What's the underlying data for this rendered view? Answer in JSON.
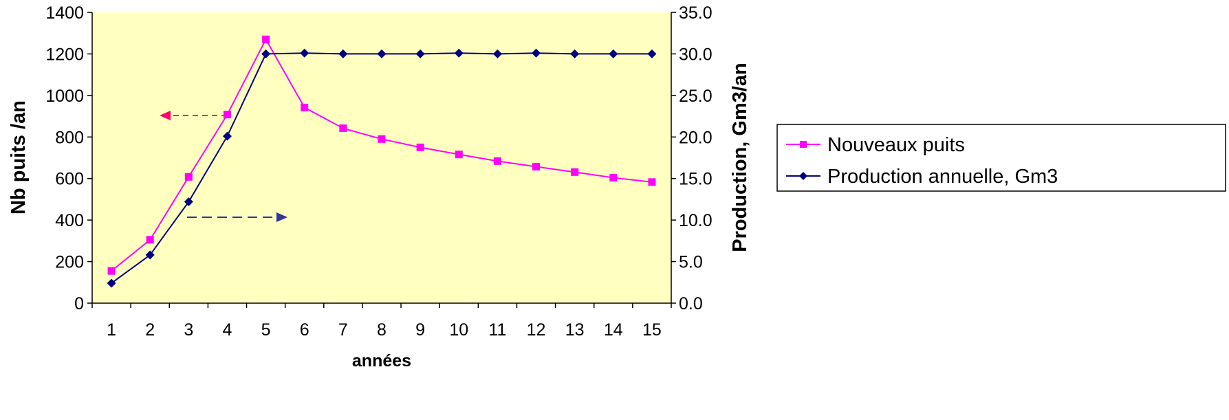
{
  "chart_data": {
    "type": "line",
    "x": [
      1,
      2,
      3,
      4,
      5,
      6,
      7,
      8,
      9,
      10,
      11,
      12,
      13,
      14,
      15
    ],
    "series": [
      {
        "name": "Nouveaux puits",
        "axis": "left",
        "color": "#ff00ff",
        "marker": "square",
        "values": [
          155,
          305,
          608,
          908,
          1270,
          942,
          842,
          790,
          750,
          716,
          684,
          657,
          631,
          604,
          583
        ]
      },
      {
        "name": "Production annuelle, Gm3",
        "axis": "right",
        "color": "#000080",
        "marker": "diamond",
        "values": [
          2.4,
          5.8,
          12.2,
          20.1,
          30.0,
          30.1,
          30.0,
          30.0,
          30.0,
          30.1,
          30.0,
          30.1,
          30.0,
          30.0,
          30.0
        ]
      }
    ],
    "xlabel": "années",
    "ylabel_left": "Nb puits /an",
    "ylabel_right": "Production, Gm3/an",
    "ylim_left": [
      0,
      1400
    ],
    "ylim_right": [
      0,
      35
    ],
    "yticks_left": [
      "0",
      "200",
      "400",
      "600",
      "800",
      "1000",
      "1200",
      "1400"
    ],
    "yticks_right": [
      "0.0",
      "5.0",
      "10.0",
      "15.0",
      "20.0",
      "25.0",
      "30.0",
      "35.0"
    ],
    "xticks": [
      "1",
      "2",
      "3",
      "4",
      "5",
      "6",
      "7",
      "8",
      "9",
      "10",
      "11",
      "12",
      "13",
      "14",
      "15"
    ],
    "plot_background": "#ffffc0",
    "grid": false,
    "legend_position": "right",
    "annotations": [
      {
        "type": "dashed-arrow",
        "direction": "left",
        "color": "#ff0066",
        "meaning": "Nouveaux puits uses left axis"
      },
      {
        "type": "dashed-arrow",
        "direction": "right",
        "color": "#333399",
        "meaning": "Production uses right axis"
      }
    ]
  }
}
